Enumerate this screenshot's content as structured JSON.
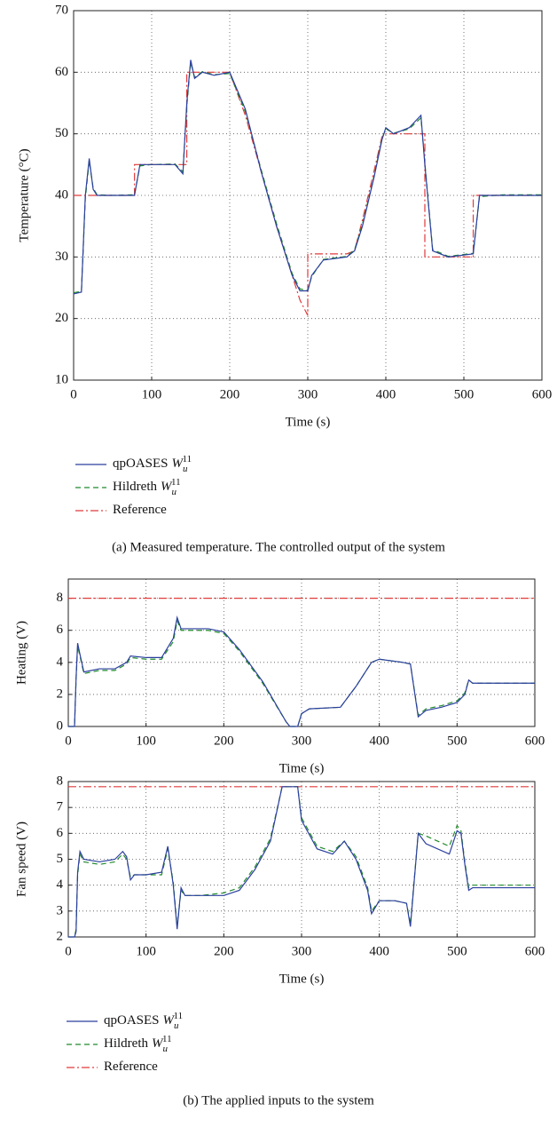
{
  "chart_data": [
    {
      "type": "line",
      "ylabel": "Temperature (°C)",
      "xlabel": "Time (s)",
      "caption": "(a)  Measured temperature. The controlled output of the system",
      "x": [
        0,
        10,
        15,
        20,
        25,
        30,
        50,
        78,
        78,
        85,
        100,
        130,
        140,
        145,
        145,
        150,
        155,
        165,
        180,
        200,
        220,
        240,
        260,
        280,
        290,
        298,
        300,
        300,
        305,
        320,
        350,
        360,
        370,
        385,
        395,
        400,
        410,
        430,
        445,
        450,
        450,
        460,
        480,
        512,
        512,
        520,
        550,
        600
      ],
      "xlim": [
        0,
        600
      ],
      "xticks": [
        0,
        100,
        200,
        300,
        400,
        500,
        600
      ],
      "ylim": [
        10,
        70
      ],
      "yticks": [
        10,
        20,
        30,
        40,
        50,
        60,
        70
      ],
      "grid": true,
      "series": [
        {
          "name": "qpOASES",
          "name_math": "W",
          "name_sub": "u",
          "name_sup": "11",
          "color": "#2b3f9e",
          "dash": "solid",
          "values": [
            24,
            24.3,
            40,
            46,
            41,
            40,
            40,
            40,
            40,
            45,
            45,
            45,
            43.5,
            55,
            55,
            62,
            59,
            60,
            59.5,
            60,
            54,
            44,
            35,
            27,
            24.5,
            24.5,
            24.5,
            24.5,
            27,
            29.5,
            30,
            31,
            35,
            43,
            49,
            51,
            50,
            51,
            53,
            45,
            45,
            31,
            30,
            30.5,
            30.5,
            40,
            40,
            40
          ]
        },
        {
          "name": "Hildreth",
          "name_math": "W",
          "name_sub": "u",
          "name_sup": "11",
          "color": "#1f8a2a",
          "dash": "dashed",
          "values": [
            24.2,
            24.4,
            39.5,
            45.6,
            41.2,
            40.1,
            40,
            40.1,
            40.1,
            44.8,
            45,
            45.1,
            43.8,
            54.5,
            54.5,
            61.6,
            59.2,
            60.1,
            59.6,
            59.8,
            53.6,
            44.3,
            35.4,
            27.3,
            24.8,
            24.6,
            24.6,
            24.6,
            26.8,
            29.6,
            30.1,
            31.2,
            35.3,
            43.2,
            49.2,
            50.8,
            50.1,
            50.8,
            52.6,
            45.3,
            45.3,
            31.2,
            30.1,
            30.6,
            30.6,
            39.8,
            40.1,
            40.1
          ]
        },
        {
          "name": "Reference",
          "color": "#e03a3a",
          "dash": "dashdot",
          "values": [
            40,
            40,
            40,
            40,
            40,
            40,
            40,
            40,
            45,
            45,
            45,
            45,
            45,
            45,
            60,
            60,
            60,
            60,
            60,
            60,
            53,
            44,
            35,
            27,
            23,
            21,
            20.5,
            30.5,
            30.5,
            30.5,
            30.5,
            31,
            36,
            44,
            49.5,
            50,
            50,
            50,
            50,
            50,
            30,
            30,
            30,
            30,
            40,
            40,
            40,
            40
          ]
        }
      ]
    },
    {
      "type": "line",
      "ylabel": "Heating (V)",
      "xlabel": "Time (s)",
      "x": [
        0,
        8,
        10,
        12,
        15,
        20,
        40,
        60,
        75,
        80,
        100,
        120,
        135,
        140,
        145,
        150,
        180,
        200,
        220,
        250,
        280,
        285,
        295,
        300,
        310,
        350,
        370,
        390,
        400,
        430,
        440,
        450,
        460,
        480,
        500,
        510,
        515,
        520,
        550,
        600
      ],
      "xlim": [
        0,
        600
      ],
      "xticks": [
        0,
        100,
        200,
        300,
        400,
        500,
        600
      ],
      "ylim": [
        0,
        9.2
      ],
      "yticks": [
        0,
        2,
        4,
        6,
        8
      ],
      "grid": true,
      "series": [
        {
          "color": "#2b3f9e",
          "dash": "solid",
          "values": [
            0,
            0,
            3,
            5.2,
            4.5,
            3.4,
            3.6,
            3.6,
            4.0,
            4.4,
            4.3,
            4.3,
            5.5,
            6.8,
            6.1,
            6.1,
            6.1,
            5.9,
            4.8,
            2.8,
            0.3,
            0,
            0,
            0.8,
            1.1,
            1.2,
            2.5,
            4.0,
            4.2,
            4.0,
            3.9,
            0.6,
            1.0,
            1.2,
            1.5,
            2.0,
            2.9,
            2.7,
            2.7,
            2.7
          ]
        },
        {
          "color": "#1f8a2a",
          "dash": "dashed",
          "values": [
            0,
            0,
            2.9,
            5.0,
            4.4,
            3.3,
            3.5,
            3.5,
            3.9,
            4.3,
            4.2,
            4.2,
            5.3,
            6.6,
            6.0,
            6.0,
            6.0,
            5.8,
            4.7,
            2.7,
            0.3,
            0,
            0,
            0.8,
            1.1,
            1.2,
            2.5,
            4.0,
            4.2,
            4.0,
            3.9,
            0.7,
            1.1,
            1.3,
            1.6,
            2.1,
            2.9,
            2.7,
            2.7,
            2.7
          ]
        },
        {
          "color": "#e03a3a",
          "dash": "dashdot",
          "values": [
            8,
            8,
            8,
            8,
            8,
            8,
            8,
            8,
            8,
            8,
            8,
            8,
            8,
            8,
            8,
            8,
            8,
            8,
            8,
            8,
            8,
            8,
            8,
            8,
            8,
            8,
            8,
            8,
            8,
            8,
            8,
            8,
            8,
            8,
            8,
            8,
            8,
            8,
            8,
            8
          ]
        }
      ]
    },
    {
      "type": "line",
      "ylabel": "Fan speed (V)",
      "xlabel": "Time (s)",
      "caption": "(b)  The applied inputs to the system",
      "x": [
        0,
        8,
        10,
        12,
        15,
        20,
        40,
        60,
        70,
        75,
        80,
        85,
        100,
        120,
        128,
        135,
        140,
        145,
        150,
        170,
        200,
        220,
        240,
        260,
        275,
        285,
        295,
        300,
        320,
        340,
        355,
        370,
        385,
        390,
        400,
        420,
        435,
        440,
        450,
        460,
        490,
        500,
        505,
        510,
        515,
        520,
        550,
        600
      ],
      "xlim": [
        0,
        600
      ],
      "xticks": [
        0,
        100,
        200,
        300,
        400,
        500,
        600
      ],
      "ylim": [
        2,
        8
      ],
      "yticks": [
        2,
        3,
        4,
        5,
        6,
        7,
        8
      ],
      "grid": true,
      "series": [
        {
          "name": "qpOASES",
          "name_math": "W",
          "name_sub": "u",
          "name_sup": "11",
          "color": "#2b3f9e",
          "dash": "solid",
          "values": [
            2.0,
            2.0,
            2.2,
            4.5,
            5.3,
            5.0,
            4.9,
            5.0,
            5.3,
            5.1,
            4.2,
            4.4,
            4.4,
            4.5,
            5.5,
            4.0,
            2.3,
            3.9,
            3.6,
            3.6,
            3.6,
            3.8,
            4.6,
            5.7,
            7.8,
            7.8,
            7.8,
            6.5,
            5.4,
            5.2,
            5.7,
            5.0,
            3.8,
            2.9,
            3.4,
            3.4,
            3.3,
            2.4,
            6.0,
            5.6,
            5.2,
            6.1,
            6.0,
            4.8,
            3.8,
            3.9,
            3.9,
            3.9
          ]
        },
        {
          "name": "Hildreth",
          "name_math": "W",
          "name_sub": "u",
          "name_sup": "11",
          "color": "#1f8a2a",
          "dash": "dashed",
          "values": [
            2.0,
            2.0,
            2.3,
            4.4,
            5.2,
            4.9,
            4.8,
            4.9,
            5.2,
            5.0,
            4.3,
            4.4,
            4.4,
            4.4,
            5.4,
            4.1,
            2.4,
            3.8,
            3.6,
            3.6,
            3.7,
            3.9,
            4.7,
            5.8,
            7.8,
            7.8,
            7.8,
            6.6,
            5.5,
            5.3,
            5.7,
            5.1,
            3.9,
            3.0,
            3.4,
            3.4,
            3.3,
            2.5,
            6.0,
            5.9,
            5.5,
            6.3,
            6.1,
            4.9,
            3.9,
            4.0,
            4.0,
            4.0
          ]
        },
        {
          "name": "Reference",
          "color": "#e03a3a",
          "dash": "dashdot",
          "values": [
            7.8,
            7.8,
            7.8,
            7.8,
            7.8,
            7.8,
            7.8,
            7.8,
            7.8,
            7.8,
            7.8,
            7.8,
            7.8,
            7.8,
            7.8,
            7.8,
            7.8,
            7.8,
            7.8,
            7.8,
            7.8,
            7.8,
            7.8,
            7.8,
            7.8,
            7.8,
            7.8,
            7.8,
            7.8,
            7.8,
            7.8,
            7.8,
            7.8,
            7.8,
            7.8,
            7.8,
            7.8,
            7.8,
            7.8,
            7.8,
            7.8,
            7.8,
            7.8,
            7.8,
            7.8,
            7.8,
            7.8,
            7.8
          ]
        }
      ]
    }
  ]
}
